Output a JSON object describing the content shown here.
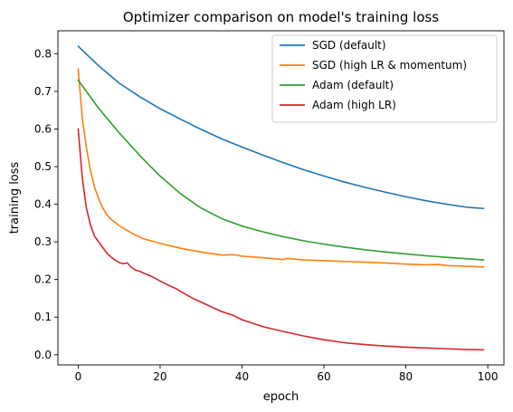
{
  "chart_data": {
    "type": "line",
    "title": "Optimizer comparison on model's training loss",
    "xlabel": "epoch",
    "ylabel": "training loss",
    "xlim": [
      -4.95,
      103.95
    ],
    "ylim": [
      -0.027,
      0.861
    ],
    "xticks": [
      0,
      20,
      40,
      60,
      80,
      100
    ],
    "yticks": [
      0.0,
      0.1,
      0.2,
      0.3,
      0.4,
      0.5,
      0.6,
      0.7,
      0.8
    ],
    "grid": false,
    "legend_position": "top-right",
    "series": [
      {
        "name": "SGD (default)",
        "color": "#1f77b4",
        "x": [
          0,
          5,
          10,
          15,
          20,
          25,
          30,
          35,
          40,
          45,
          50,
          55,
          60,
          65,
          70,
          75,
          80,
          85,
          90,
          95,
          99
        ],
        "y": [
          0.82,
          0.768,
          0.722,
          0.686,
          0.654,
          0.626,
          0.599,
          0.574,
          0.552,
          0.531,
          0.511,
          0.492,
          0.475,
          0.459,
          0.445,
          0.432,
          0.42,
          0.409,
          0.4,
          0.392,
          0.389
        ]
      },
      {
        "name": "SGD (high LR & momentum)",
        "color": "#ff7f0e",
        "x": [
          0,
          1,
          2,
          3,
          4,
          5,
          6,
          7,
          8,
          9,
          10,
          12,
          14,
          16,
          18,
          20,
          25,
          30,
          35,
          38,
          40,
          45,
          50,
          51,
          55,
          60,
          65,
          70,
          75,
          80,
          85,
          88,
          90,
          95,
          99
        ],
        "y": [
          0.76,
          0.63,
          0.55,
          0.49,
          0.445,
          0.415,
          0.39,
          0.372,
          0.36,
          0.352,
          0.343,
          0.33,
          0.318,
          0.308,
          0.302,
          0.296,
          0.283,
          0.273,
          0.265,
          0.266,
          0.262,
          0.258,
          0.253,
          0.256,
          0.252,
          0.25,
          0.248,
          0.246,
          0.244,
          0.241,
          0.239,
          0.24,
          0.237,
          0.235,
          0.233
        ]
      },
      {
        "name": "Adam (default)",
        "color": "#2ca02c",
        "x": [
          0,
          5,
          10,
          15,
          20,
          25,
          30,
          35,
          40,
          45,
          50,
          55,
          60,
          65,
          70,
          75,
          80,
          85,
          90,
          95,
          99
        ],
        "y": [
          0.73,
          0.655,
          0.59,
          0.53,
          0.475,
          0.428,
          0.39,
          0.362,
          0.342,
          0.327,
          0.314,
          0.303,
          0.294,
          0.286,
          0.279,
          0.273,
          0.268,
          0.263,
          0.259,
          0.255,
          0.252
        ]
      },
      {
        "name": "Adam (high LR)",
        "color": "#d62728",
        "x": [
          0,
          1,
          2,
          3,
          4,
          5,
          6,
          7,
          8,
          9,
          10,
          11,
          12,
          13,
          14,
          15,
          16,
          18,
          20,
          22,
          24,
          26,
          28,
          30,
          35,
          38,
          40,
          45,
          50,
          55,
          60,
          65,
          70,
          75,
          80,
          85,
          90,
          95,
          99
        ],
        "y": [
          0.6,
          0.47,
          0.39,
          0.345,
          0.315,
          0.3,
          0.285,
          0.27,
          0.26,
          0.252,
          0.245,
          0.242,
          0.244,
          0.232,
          0.225,
          0.222,
          0.217,
          0.208,
          0.196,
          0.185,
          0.175,
          0.162,
          0.15,
          0.14,
          0.115,
          0.104,
          0.093,
          0.075,
          0.062,
          0.05,
          0.04,
          0.032,
          0.027,
          0.023,
          0.02,
          0.018,
          0.016,
          0.014,
          0.013
        ]
      }
    ]
  }
}
